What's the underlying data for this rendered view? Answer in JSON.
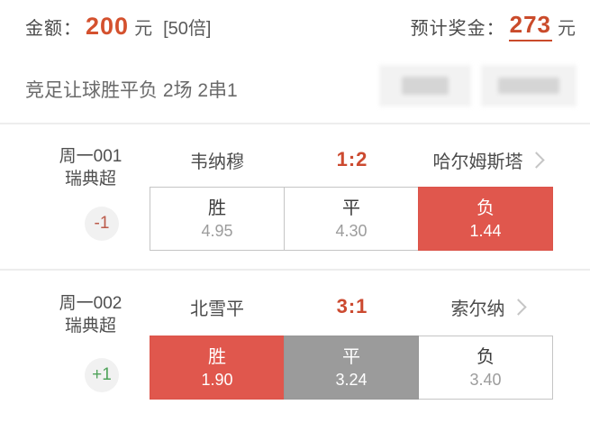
{
  "summary": {
    "amount_label": "金额：",
    "amount_value": "200",
    "amount_unit": "元",
    "multiplier": "[50倍]",
    "prize_label": "预计奖金：",
    "prize_value": "273",
    "prize_unit": "元"
  },
  "bet_type": {
    "title": "竞足让球胜平负 2场 2串1"
  },
  "colors": {
    "amount_red": "#d4512e",
    "prize_red": "#ca4b2b",
    "score_red": "#cc4a30",
    "selected_cell_red": "#e0574d",
    "selected_cell_gray": "#9b9b9b",
    "handicap_minus": "#bb5a4a",
    "handicap_plus": "#4fa35a"
  },
  "matches": [
    {
      "id": "周一001",
      "league": "瑞典超",
      "handicap": "-1",
      "handicap_type": "minus",
      "home": "韦纳穆",
      "score": "1:2",
      "away": "哈尔姆斯塔",
      "odds": [
        {
          "label": "胜",
          "value": "4.95",
          "state": "normal"
        },
        {
          "label": "平",
          "value": "4.30",
          "state": "normal"
        },
        {
          "label": "负",
          "value": "1.44",
          "state": "sel-red"
        }
      ]
    },
    {
      "id": "周一002",
      "league": "瑞典超",
      "handicap": "+1",
      "handicap_type": "plus",
      "home": "北雪平",
      "score": "3:1",
      "away": "索尔纳",
      "odds": [
        {
          "label": "胜",
          "value": "1.90",
          "state": "sel-red"
        },
        {
          "label": "平",
          "value": "3.24",
          "state": "sel-gray"
        },
        {
          "label": "负",
          "value": "3.40",
          "state": "normal"
        }
      ]
    }
  ]
}
